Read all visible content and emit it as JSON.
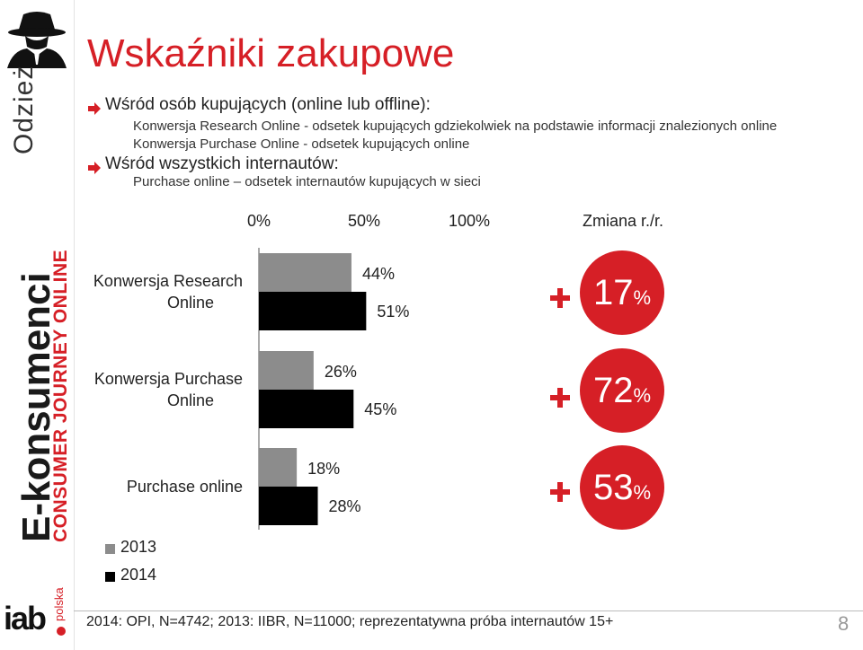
{
  "sidebar": {
    "category": "Odzież",
    "brand_main": "E-konsumenci",
    "brand_sub": "CONSUMER JOURNEY ONLINE",
    "logo_text": "iab",
    "logo_country": "polska"
  },
  "title": "Wskaźniki zakupowe",
  "bullets": [
    {
      "text": "Wśród osób kupujących (online lub offline):",
      "sub": [
        "Konwersja Research Online - odsetek kupujących gdziekolwiek na podstawie informacji znalezionych online",
        "Konwersja Purchase Online - odsetek kupujących online"
      ]
    },
    {
      "text": "Wśród wszystkich internautów:",
      "sub": [
        "Purchase online – odsetek internautów kupujących w sieci"
      ]
    }
  ],
  "colors": {
    "accent": "#d61f26",
    "series_2013": "#8c8c8c",
    "series_2014": "#000000"
  },
  "change_header": "Zmiana r./r.",
  "changes": [
    {
      "sign": "+",
      "value": "17",
      "unit": "%"
    },
    {
      "sign": "+",
      "value": "72",
      "unit": "%"
    },
    {
      "sign": "+",
      "value": "53",
      "unit": "%"
    }
  ],
  "chart_data": {
    "type": "bar",
    "orientation": "horizontal",
    "categories": [
      "Konwersja Research\nOnline",
      "Konwersja Purchase\nOnline",
      "Purchase online"
    ],
    "series": [
      {
        "name": "2013",
        "values": [
          44,
          26,
          18
        ],
        "labels": [
          "44%",
          "26%",
          "18%"
        ],
        "color": "#8c8c8c"
      },
      {
        "name": "2014",
        "values": [
          51,
          45,
          28
        ],
        "labels": [
          "51%",
          "45%",
          "28%"
        ],
        "color": "#000000"
      }
    ],
    "tick_labels": [
      "0%",
      "50%",
      "100%"
    ],
    "xlim": [
      0,
      100
    ],
    "legend_placement": "bottom-left"
  },
  "footer": "2014: OPI, N=4742; 2013: IIBR, N=11000; reprezentatywna próba internautów 15+",
  "page_number": "8"
}
